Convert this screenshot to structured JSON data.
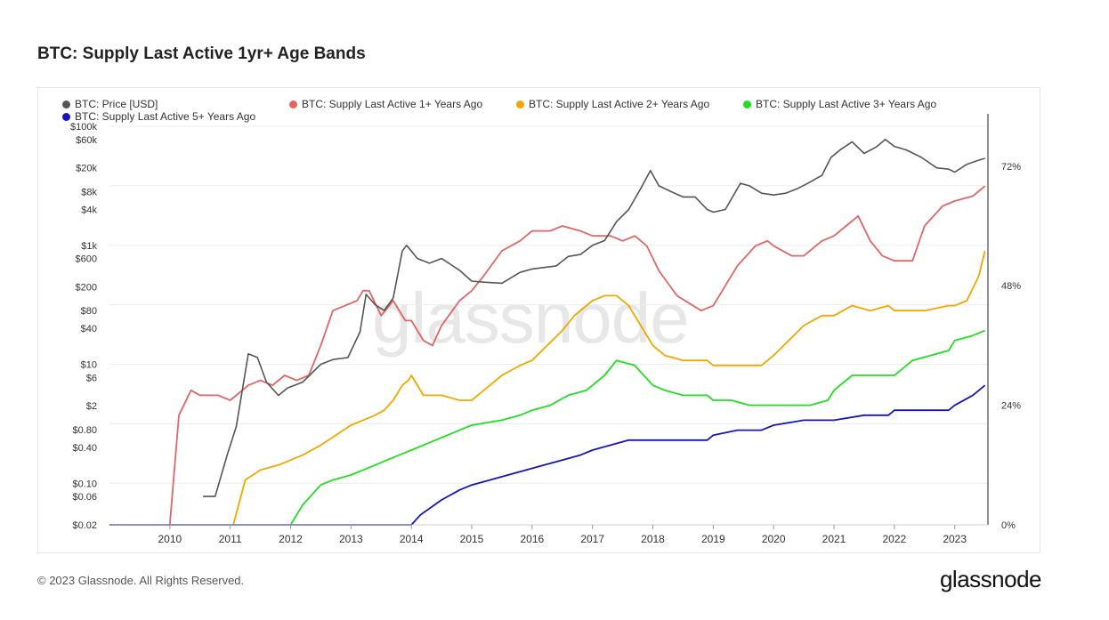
{
  "page": {
    "title": "BTC: Supply Last Active 1yr+ Age Bands",
    "footer_copyright": "© 2023 Glassnode. All Rights Reserved.",
    "brand": "glassnode",
    "watermark": "glassnode"
  },
  "colors": {
    "price": "#555555",
    "s1": "#e06666",
    "s2": "#f0a800",
    "s3": "#22dd22",
    "s5": "#1515b8",
    "grid": "#ececec"
  },
  "chart_data": {
    "type": "line",
    "title": "BTC: Supply Last Active 1yr+ Age Bands",
    "x_ticks": [
      "2010",
      "2011",
      "2012",
      "2013",
      "2014",
      "2015",
      "2016",
      "2017",
      "2018",
      "2019",
      "2020",
      "2021",
      "2022",
      "2023"
    ],
    "xlim": [
      2009.0,
      2023.55
    ],
    "y_left": {
      "scale": "log",
      "range": [
        0.02,
        100000
      ],
      "ticks": [
        {
          "v": 100000,
          "label": "$100k"
        },
        {
          "v": 60000,
          "label": "$60k"
        },
        {
          "v": 20000,
          "label": "$20k"
        },
        {
          "v": 8000,
          "label": "$8k"
        },
        {
          "v": 4000,
          "label": "$4k"
        },
        {
          "v": 1000,
          "label": "$1k"
        },
        {
          "v": 600,
          "label": "$600"
        },
        {
          "v": 200,
          "label": "$200"
        },
        {
          "v": 80,
          "label": "$80"
        },
        {
          "v": 40,
          "label": "$40"
        },
        {
          "v": 10,
          "label": "$10"
        },
        {
          "v": 6,
          "label": "$6"
        },
        {
          "v": 2,
          "label": "$2"
        },
        {
          "v": 0.8,
          "label": "$0.80"
        },
        {
          "v": 0.4,
          "label": "$0.40"
        },
        {
          "v": 0.1,
          "label": "$0.10"
        },
        {
          "v": 0.06,
          "label": "$0.06"
        },
        {
          "v": 0.02,
          "label": "$0.02"
        }
      ]
    },
    "y_right": {
      "scale": "linear",
      "range": [
        0,
        80
      ],
      "ticks": [
        {
          "v": 72,
          "label": "72%"
        },
        {
          "v": 48,
          "label": "48%"
        },
        {
          "v": 24,
          "label": "24%"
        },
        {
          "v": 0,
          "label": "0%"
        }
      ]
    },
    "legend_placement": "top-left",
    "series": [
      {
        "name": "BTC: Price [USD]",
        "axis": "left",
        "color_key": "price",
        "x": [
          2010.55,
          2010.75,
          2010.95,
          2011.1,
          2011.3,
          2011.45,
          2011.6,
          2011.8,
          2011.95,
          2012.2,
          2012.5,
          2012.7,
          2012.95,
          2013.15,
          2013.25,
          2013.4,
          2013.55,
          2013.7,
          2013.85,
          2013.92,
          2014.0,
          2014.1,
          2014.3,
          2014.5,
          2014.8,
          2015.0,
          2015.2,
          2015.5,
          2015.8,
          2016.0,
          2016.4,
          2016.6,
          2016.8,
          2017.0,
          2017.2,
          2017.4,
          2017.6,
          2017.8,
          2017.96,
          2018.1,
          2018.3,
          2018.5,
          2018.7,
          2018.9,
          2019.0,
          2019.2,
          2019.45,
          2019.6,
          2019.8,
          2020.0,
          2020.2,
          2020.4,
          2020.6,
          2020.8,
          2020.95,
          2021.1,
          2021.3,
          2021.5,
          2021.7,
          2021.85,
          2022.0,
          2022.2,
          2022.45,
          2022.7,
          2022.9,
          2023.0,
          2023.2,
          2023.4,
          2023.5
        ],
        "values": [
          0.06,
          0.06,
          0.3,
          0.9,
          15,
          13,
          5,
          3,
          4,
          5,
          10,
          12,
          13,
          35,
          150,
          100,
          80,
          130,
          800,
          1000,
          800,
          600,
          500,
          600,
          380,
          250,
          240,
          230,
          350,
          400,
          450,
          650,
          700,
          1000,
          1200,
          2500,
          4000,
          9000,
          18000,
          10000,
          8000,
          6500,
          6500,
          4000,
          3600,
          4000,
          11000,
          10000,
          7500,
          7000,
          7500,
          9000,
          11500,
          15000,
          30000,
          40000,
          55000,
          35000,
          45000,
          60000,
          46000,
          40000,
          30000,
          20000,
          19000,
          17000,
          23000,
          27000,
          29000
        ]
      },
      {
        "name": "BTC: Supply Last Active 1+ Years Ago",
        "axis": "right",
        "color_key": "s1",
        "x": [
          2010.0,
          2010.15,
          2010.35,
          2010.5,
          2010.8,
          2011.0,
          2011.3,
          2011.5,
          2011.7,
          2011.9,
          2012.1,
          2012.3,
          2012.5,
          2012.7,
          2012.9,
          2013.1,
          2013.2,
          2013.3,
          2013.5,
          2013.7,
          2013.9,
          2014.0,
          2014.2,
          2014.35,
          2014.5,
          2014.8,
          2015.0,
          2015.2,
          2015.5,
          2015.8,
          2016.0,
          2016.3,
          2016.5,
          2016.8,
          2017.0,
          2017.3,
          2017.5,
          2017.7,
          2017.9,
          2018.1,
          2018.4,
          2018.8,
          2019.0,
          2019.2,
          2019.4,
          2019.7,
          2019.9,
          2020.0,
          2020.3,
          2020.5,
          2020.8,
          2021.0,
          2021.2,
          2021.4,
          2021.6,
          2021.8,
          2022.0,
          2022.3,
          2022.5,
          2022.8,
          2023.0,
          2023.3,
          2023.5
        ],
        "values": [
          0,
          22,
          27,
          26,
          26,
          25,
          28,
          29,
          28,
          30,
          29,
          30,
          36,
          43,
          44,
          45,
          47,
          47,
          42,
          45,
          41,
          41,
          37,
          36,
          40,
          45,
          47,
          50,
          55,
          57,
          59,
          59,
          60,
          59,
          58,
          58,
          57,
          58,
          56,
          51,
          46,
          43,
          44,
          48,
          52,
          56,
          57,
          56,
          54,
          54,
          57,
          58,
          60,
          62,
          57,
          54,
          53,
          53,
          60,
          64,
          65,
          66,
          68
        ]
      },
      {
        "name": "BTC: Supply Last Active 2+ Years Ago",
        "axis": "right",
        "color_key": "s2",
        "x": [
          2011.05,
          2011.25,
          2011.5,
          2011.8,
          2012.0,
          2012.2,
          2012.5,
          2012.75,
          2013.0,
          2013.2,
          2013.4,
          2013.55,
          2013.7,
          2013.85,
          2013.95,
          2014.0,
          2014.2,
          2014.5,
          2014.8,
          2015.0,
          2015.2,
          2015.5,
          2015.8,
          2016.0,
          2016.5,
          2016.7,
          2017.0,
          2017.2,
          2017.4,
          2017.6,
          2017.8,
          2018.0,
          2018.2,
          2018.5,
          2018.9,
          2019.0,
          2019.2,
          2019.5,
          2019.8,
          2020.0,
          2020.5,
          2020.8,
          2021.0,
          2021.3,
          2021.6,
          2021.9,
          2022.0,
          2022.5,
          2022.9,
          2023.0,
          2023.2,
          2023.4,
          2023.5
        ],
        "values": [
          0,
          9,
          11,
          12,
          13,
          14,
          16,
          18,
          20,
          21,
          22,
          23,
          25,
          28,
          29,
          30,
          26,
          26,
          25,
          25,
          27,
          30,
          32,
          33,
          39,
          42,
          45,
          46,
          46,
          44,
          40,
          36,
          34,
          33,
          33,
          32,
          32,
          32,
          32,
          34,
          40,
          42,
          42,
          44,
          43,
          44,
          43,
          43,
          44,
          44,
          45,
          50,
          55
        ]
      },
      {
        "name": "BTC: Supply Last Active 3+ Years Ago",
        "axis": "right",
        "color_key": "s3",
        "x": [
          2012.0,
          2012.2,
          2012.5,
          2012.7,
          2013.0,
          2013.2,
          2013.4,
          2013.6,
          2013.8,
          2014.0,
          2014.2,
          2014.4,
          2014.6,
          2014.8,
          2015.0,
          2015.5,
          2015.8,
          2016.0,
          2016.3,
          2016.6,
          2016.9,
          2017.0,
          2017.2,
          2017.4,
          2017.7,
          2018.0,
          2018.2,
          2018.5,
          2018.9,
          2019.0,
          2019.3,
          2019.6,
          2019.9,
          2020.0,
          2020.3,
          2020.6,
          2020.9,
          2021.0,
          2021.3,
          2021.6,
          2021.9,
          2022.0,
          2022.3,
          2022.6,
          2022.9,
          2023.0,
          2023.3,
          2023.5
        ],
        "values": [
          0,
          4,
          8,
          9,
          10,
          11,
          12,
          13,
          14,
          15,
          16,
          17,
          18,
          19,
          20,
          21,
          22,
          23,
          24,
          26,
          27,
          28,
          30,
          33,
          32,
          28,
          27,
          26,
          26,
          25,
          25,
          24,
          24,
          24,
          24,
          24,
          25,
          27,
          30,
          30,
          30,
          30,
          33,
          34,
          35,
          37,
          38,
          39
        ]
      },
      {
        "name": "BTC: Supply Last Active 5+ Years Ago",
        "axis": "right",
        "color_key": "s5",
        "x": [
          2009.0,
          2014.0,
          2014.15,
          2014.5,
          2014.8,
          2015.0,
          2015.3,
          2015.6,
          2015.9,
          2016.2,
          2016.5,
          2016.8,
          2017.0,
          2017.3,
          2017.6,
          2017.9,
          2018.1,
          2018.5,
          2018.9,
          2019.0,
          2019.4,
          2019.8,
          2020.0,
          2020.5,
          2020.9,
          2021.0,
          2021.5,
          2021.9,
          2022.0,
          2022.5,
          2022.9,
          2023.0,
          2023.3,
          2023.5
        ],
        "values": [
          0,
          0,
          2,
          5,
          7,
          8,
          9,
          10,
          11,
          12,
          13,
          14,
          15,
          16,
          17,
          17,
          17,
          17,
          17,
          18,
          19,
          19,
          20,
          21,
          21,
          21,
          22,
          22,
          23,
          23,
          23,
          24,
          26,
          28
        ]
      }
    ]
  }
}
